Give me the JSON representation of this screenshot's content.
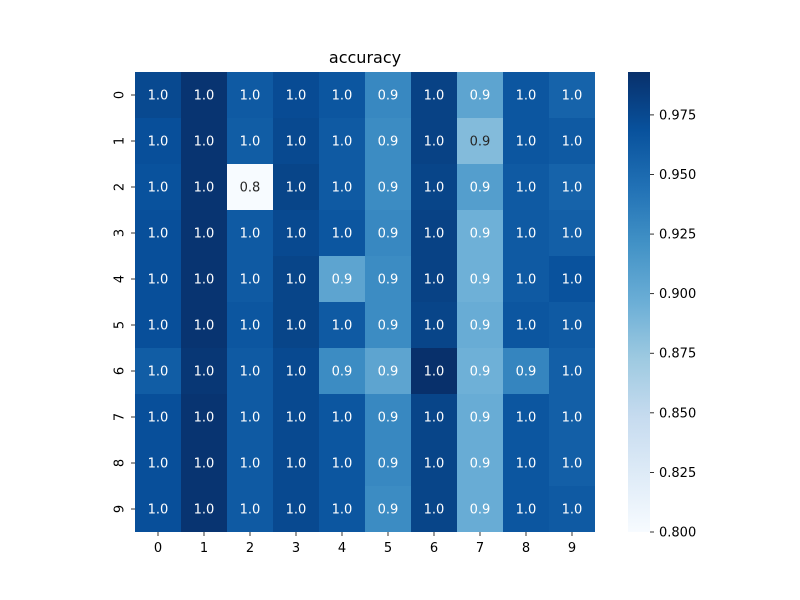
{
  "chart_data": {
    "type": "heatmap",
    "title": "accuracy",
    "xlabel": "",
    "ylabel": "",
    "x_categories": [
      "0",
      "1",
      "2",
      "3",
      "4",
      "5",
      "6",
      "7",
      "8",
      "9"
    ],
    "y_categories": [
      "0",
      "1",
      "2",
      "3",
      "4",
      "5",
      "6",
      "7",
      "8",
      "9"
    ],
    "values": [
      [
        0.975,
        0.99,
        0.962,
        0.973,
        0.965,
        0.928,
        0.98,
        0.905,
        0.965,
        0.955
      ],
      [
        0.97,
        0.99,
        0.96,
        0.975,
        0.962,
        0.925,
        0.98,
        0.885,
        0.965,
        0.962
      ],
      [
        0.968,
        0.99,
        0.8,
        0.978,
        0.962,
        0.925,
        0.978,
        0.91,
        0.962,
        0.955
      ],
      [
        0.97,
        0.99,
        0.962,
        0.975,
        0.965,
        0.928,
        0.98,
        0.895,
        0.962,
        0.958
      ],
      [
        0.97,
        0.99,
        0.962,
        0.978,
        0.905,
        0.925,
        0.98,
        0.895,
        0.962,
        0.968
      ],
      [
        0.97,
        0.99,
        0.965,
        0.978,
        0.962,
        0.925,
        0.978,
        0.898,
        0.965,
        0.962
      ],
      [
        0.96,
        0.988,
        0.962,
        0.975,
        0.925,
        0.905,
        0.993,
        0.895,
        0.93,
        0.958
      ],
      [
        0.97,
        0.99,
        0.962,
        0.975,
        0.965,
        0.928,
        0.978,
        0.898,
        0.965,
        0.958
      ],
      [
        0.97,
        0.99,
        0.962,
        0.975,
        0.965,
        0.928,
        0.978,
        0.898,
        0.965,
        0.958
      ],
      [
        0.97,
        0.99,
        0.962,
        0.975,
        0.965,
        0.925,
        0.978,
        0.898,
        0.965,
        0.962
      ]
    ],
    "cell_labels": [
      [
        "1.0",
        "1.0",
        "1.0",
        "1.0",
        "1.0",
        "0.9",
        "1.0",
        "0.9",
        "1.0",
        "1.0"
      ],
      [
        "1.0",
        "1.0",
        "1.0",
        "1.0",
        "1.0",
        "0.9",
        "1.0",
        "0.9",
        "1.0",
        "1.0"
      ],
      [
        "1.0",
        "1.0",
        "0.8",
        "1.0",
        "1.0",
        "0.9",
        "1.0",
        "0.9",
        "1.0",
        "1.0"
      ],
      [
        "1.0",
        "1.0",
        "1.0",
        "1.0",
        "1.0",
        "0.9",
        "1.0",
        "0.9",
        "1.0",
        "1.0"
      ],
      [
        "1.0",
        "1.0",
        "1.0",
        "1.0",
        "0.9",
        "0.9",
        "1.0",
        "0.9",
        "1.0",
        "1.0"
      ],
      [
        "1.0",
        "1.0",
        "1.0",
        "1.0",
        "1.0",
        "0.9",
        "1.0",
        "0.9",
        "1.0",
        "1.0"
      ],
      [
        "1.0",
        "1.0",
        "1.0",
        "1.0",
        "0.9",
        "0.9",
        "1.0",
        "0.9",
        "0.9",
        "1.0"
      ],
      [
        "1.0",
        "1.0",
        "1.0",
        "1.0",
        "1.0",
        "0.9",
        "1.0",
        "0.9",
        "1.0",
        "1.0"
      ],
      [
        "1.0",
        "1.0",
        "1.0",
        "1.0",
        "1.0",
        "0.9",
        "1.0",
        "0.9",
        "1.0",
        "1.0"
      ],
      [
        "1.0",
        "1.0",
        "1.0",
        "1.0",
        "1.0",
        "0.9",
        "1.0",
        "0.9",
        "1.0",
        "1.0"
      ]
    ],
    "colorbar": {
      "range": [
        0.8,
        0.993
      ],
      "ticks": [
        0.8,
        0.825,
        0.85,
        0.875,
        0.9,
        0.925,
        0.95,
        0.975
      ],
      "tick_labels": [
        "0.800",
        "0.825",
        "0.850",
        "0.875",
        "0.900",
        "0.925",
        "0.950",
        "0.975"
      ],
      "colormap": "Blues"
    },
    "grid": false,
    "colors": {
      "low": "#f7fbff",
      "high": "#08306b",
      "label_light": "#ffffff",
      "label_dark": "#262626"
    }
  }
}
